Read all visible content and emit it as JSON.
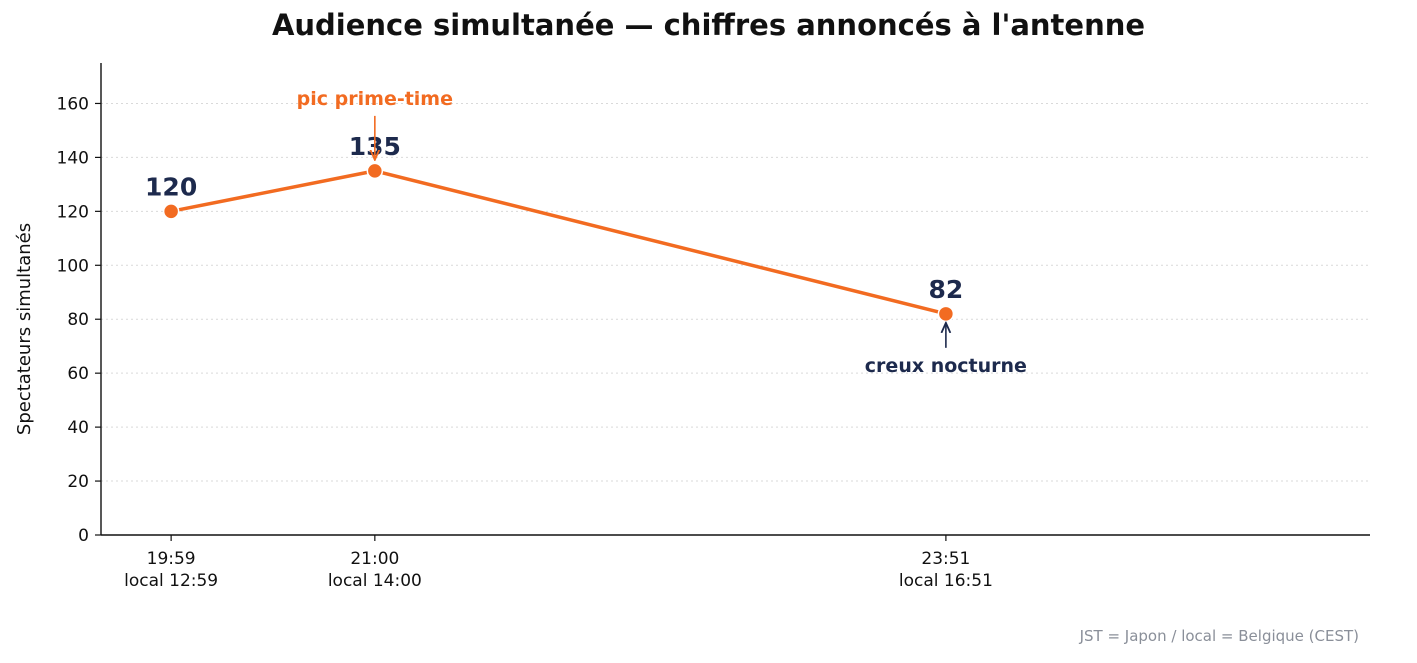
{
  "chart_data": {
    "type": "line",
    "title": "Audience simultanée — chiffres annoncés à l'antenne",
    "ylabel": "Spectateurs simultanés",
    "xlabel": "",
    "ylim": [
      0,
      175
    ],
    "yticks": [
      0,
      20,
      40,
      60,
      80,
      100,
      120,
      140,
      160
    ],
    "x_axis_type": "time",
    "xlim": [
      "19:38",
      "25:58"
    ],
    "points": [
      {
        "x": "19:59",
        "tick_label": "19:59",
        "tick_sublabel": "local 12:59",
        "y": 120,
        "value_label": "120"
      },
      {
        "x": "21:00",
        "tick_label": "21:00",
        "tick_sublabel": "local 14:00",
        "y": 135,
        "value_label": "135"
      },
      {
        "x": "23:51",
        "tick_label": "23:51",
        "tick_sublabel": "local 16:51",
        "y": 82,
        "value_label": "82"
      }
    ],
    "annotations": [
      {
        "text": "pic prime-time",
        "point_index": 1,
        "placement": "above",
        "color": "#f26b21"
      },
      {
        "text": "creux nocturne",
        "point_index": 2,
        "placement": "below",
        "color": "#1d2a4d"
      }
    ],
    "grid": "horizontal-dotted",
    "legend": "none",
    "colors": {
      "line": "#f26b21",
      "value_label": "#1d2a4d",
      "axis": "#111111",
      "grid": "#d9d9d9"
    },
    "footnote": "JST = Japon / local = Belgique (CEST)"
  }
}
